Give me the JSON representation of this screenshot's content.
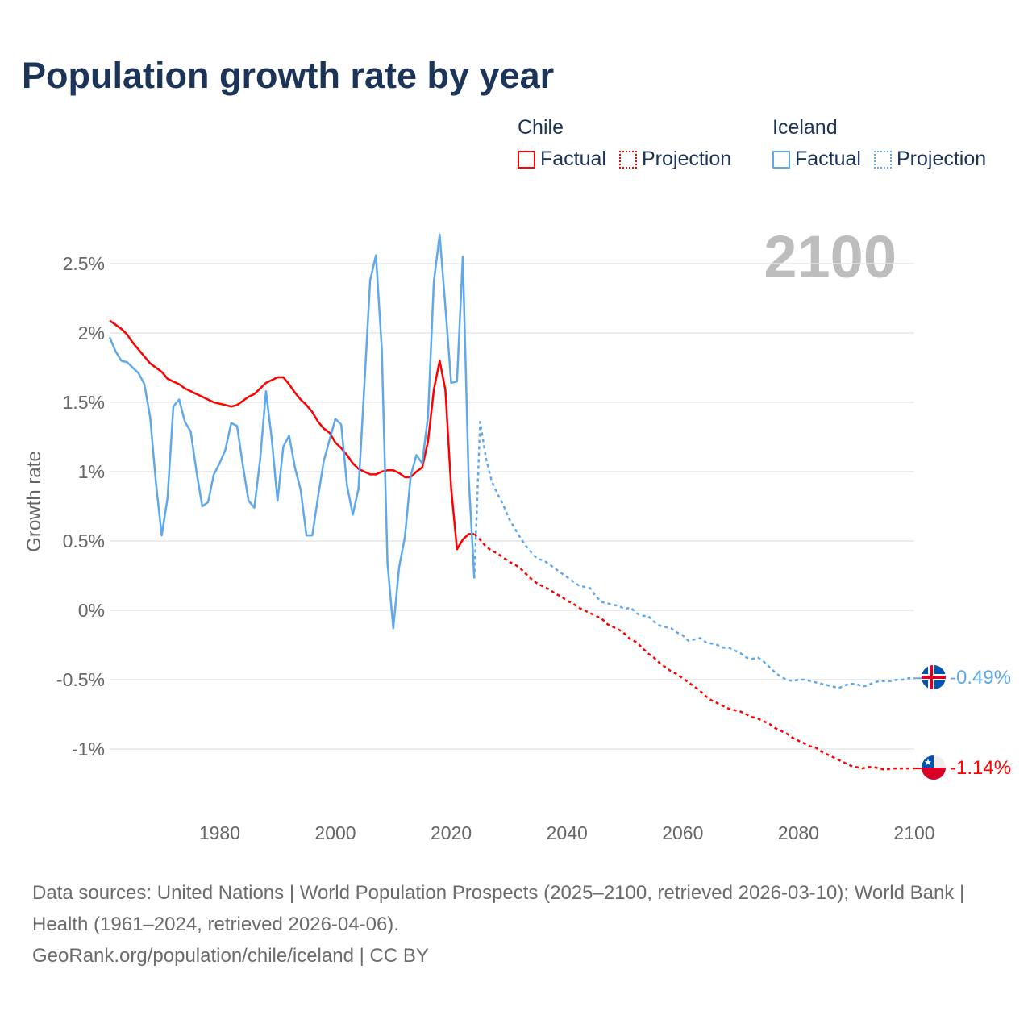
{
  "title": "Population growth rate by year",
  "legend": {
    "groups": [
      {
        "name": "Chile",
        "factual": "Factual",
        "projection": "Projection",
        "color": "#ff0000"
      },
      {
        "name": "Iceland",
        "factual": "Factual",
        "projection": "Projection",
        "color": "#5fa8ec"
      }
    ]
  },
  "current_year": "2100",
  "end_labels": {
    "iceland": "-0.49%",
    "chile": "-1.14%"
  },
  "footer": {
    "sources": "Data sources: United Nations | World Population Prospects (2025–2100, retrieved 2026-03-10); World Bank | Health (1961–2024, retrieved 2026-04-06).",
    "credit": "GeoRank.org/population/chile/iceland | CC BY"
  },
  "chart_data": {
    "type": "line",
    "title": "Population growth rate by year",
    "ylabel": "Growth rate",
    "xlabel": "",
    "xlim": [
      1961,
      2100
    ],
    "ylim": [
      -1.3,
      2.9
    ],
    "x_ticks": [
      1980,
      2000,
      2020,
      2040,
      2060,
      2080,
      2100
    ],
    "x_tick_labels": [
      "1980",
      "2000",
      "2020",
      "2040",
      "2060",
      "2080",
      "2100"
    ],
    "y_ticks": [
      2.5,
      2,
      1.5,
      1,
      0.5,
      0,
      -0.5,
      -1
    ],
    "y_tick_labels": [
      "2.5%",
      "2%",
      "1.5%",
      "1%",
      "0.5%",
      "0%",
      "-0.5%",
      "-1%"
    ],
    "grid": true,
    "legend_position": "top-right",
    "series": [
      {
        "name": "Chile Factual",
        "color": "#ff0000",
        "dashed": false,
        "start_year": 1961,
        "values": [
          2.09,
          2.06,
          2.03,
          1.99,
          1.93,
          1.88,
          1.83,
          1.78,
          1.75,
          1.72,
          1.67,
          1.65,
          1.63,
          1.6,
          1.58,
          1.56,
          1.54,
          1.52,
          1.5,
          1.49,
          1.48,
          1.47,
          1.48,
          1.51,
          1.54,
          1.56,
          1.6,
          1.64,
          1.66,
          1.68,
          1.68,
          1.63,
          1.57,
          1.52,
          1.48,
          1.43,
          1.36,
          1.31,
          1.28,
          1.21,
          1.17,
          1.12,
          1.06,
          1.02,
          1.0,
          0.98,
          0.98,
          1.0,
          1.01,
          1.01,
          0.99,
          0.96,
          0.96,
          1.0,
          1.03,
          1.22,
          1.59,
          1.8,
          1.59,
          0.88,
          0.44,
          0.51,
          0.55,
          0.55
        ]
      },
      {
        "name": "Chile Projection",
        "color": "#ff0000",
        "dashed": true,
        "start_year": 2024,
        "values": [
          0.55,
          0.51,
          0.46,
          0.43,
          0.41,
          0.38,
          0.35,
          0.33,
          0.3,
          0.26,
          0.22,
          0.19,
          0.17,
          0.15,
          0.12,
          0.1,
          0.07,
          0.05,
          0.02,
          0.0,
          -0.02,
          -0.04,
          -0.06,
          -0.1,
          -0.12,
          -0.14,
          -0.17,
          -0.21,
          -0.23,
          -0.27,
          -0.31,
          -0.34,
          -0.38,
          -0.41,
          -0.44,
          -0.46,
          -0.49,
          -0.52,
          -0.55,
          -0.58,
          -0.62,
          -0.65,
          -0.67,
          -0.69,
          -0.71,
          -0.72,
          -0.73,
          -0.75,
          -0.77,
          -0.78,
          -0.8,
          -0.82,
          -0.85,
          -0.87,
          -0.89,
          -0.92,
          -0.94,
          -0.96,
          -0.98,
          -0.99,
          -1.02,
          -1.04,
          -1.06,
          -1.08,
          -1.1,
          -1.12,
          -1.13,
          -1.14,
          -1.13,
          -1.13,
          -1.14,
          -1.15,
          -1.14,
          -1.14,
          -1.14,
          -1.14,
          -1.14
        ]
      },
      {
        "name": "Iceland Factual",
        "color": "#5fa8ec",
        "dashed": false,
        "start_year": 1961,
        "values": [
          1.97,
          1.87,
          1.8,
          1.79,
          1.75,
          1.71,
          1.63,
          1.39,
          0.92,
          0.54,
          0.81,
          1.47,
          1.52,
          1.36,
          1.29,
          1.0,
          0.75,
          0.78,
          0.98,
          1.06,
          1.16,
          1.35,
          1.33,
          1.05,
          0.79,
          0.74,
          1.09,
          1.58,
          1.24,
          0.79,
          1.18,
          1.26,
          1.03,
          0.87,
          0.54,
          0.54,
          0.82,
          1.08,
          1.23,
          1.38,
          1.34,
          0.9,
          0.69,
          0.88,
          1.62,
          2.38,
          2.56,
          1.89,
          0.34,
          -0.13,
          0.31,
          0.53,
          0.97,
          1.12,
          1.06,
          1.4,
          2.37,
          2.71,
          2.19,
          1.64,
          1.65,
          2.55,
          0.97,
          0.23
        ]
      },
      {
        "name": "Iceland Projection",
        "color": "#5fa8ec",
        "dashed": true,
        "start_year": 2024,
        "values": [
          0.23,
          1.36,
          1.1,
          0.93,
          0.84,
          0.76,
          0.66,
          0.59,
          0.52,
          0.46,
          0.41,
          0.37,
          0.36,
          0.33,
          0.3,
          0.27,
          0.24,
          0.21,
          0.18,
          0.17,
          0.16,
          0.1,
          0.06,
          0.05,
          0.04,
          0.03,
          0.01,
          0.02,
          -0.02,
          -0.04,
          -0.04,
          -0.08,
          -0.11,
          -0.12,
          -0.13,
          -0.16,
          -0.18,
          -0.22,
          -0.21,
          -0.2,
          -0.23,
          -0.24,
          -0.25,
          -0.27,
          -0.27,
          -0.29,
          -0.31,
          -0.34,
          -0.35,
          -0.34,
          -0.37,
          -0.41,
          -0.45,
          -0.48,
          -0.5,
          -0.51,
          -0.5,
          -0.5,
          -0.51,
          -0.52,
          -0.53,
          -0.54,
          -0.55,
          -0.56,
          -0.54,
          -0.53,
          -0.53,
          -0.55,
          -0.54,
          -0.52,
          -0.51,
          -0.51,
          -0.51,
          -0.5,
          -0.5,
          -0.49,
          -0.49
        ]
      }
    ]
  }
}
